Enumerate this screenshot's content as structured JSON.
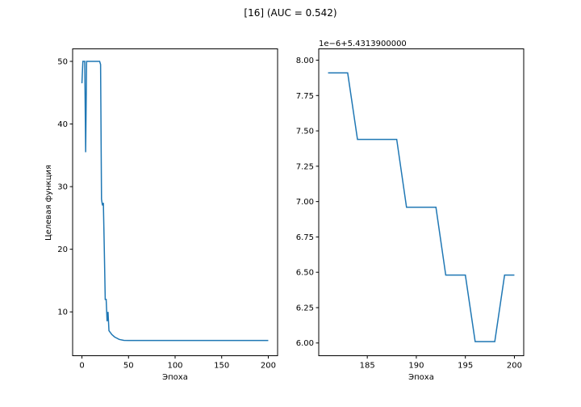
{
  "figure": {
    "suptitle": "[16] (AUC = 0.542)"
  },
  "chart_data": [
    {
      "type": "line",
      "title": "",
      "xlabel": "Эпоха",
      "ylabel": "Целевая функция",
      "xlim": [
        -10,
        210
      ],
      "ylim": [
        3.0,
        52.0
      ],
      "xticks": [
        0,
        50,
        100,
        150,
        200
      ],
      "yticks": [
        10,
        20,
        30,
        40,
        50
      ],
      "xtick_labels": [
        "0",
        "50",
        "100",
        "150",
        "200"
      ],
      "ytick_labels": [
        "10",
        "20",
        "30",
        "40",
        "50"
      ],
      "grid": false,
      "color": "#1f77b4",
      "x": [
        0,
        1,
        2,
        3,
        4,
        5,
        6,
        7,
        8,
        10,
        15,
        19,
        20,
        21,
        22,
        23,
        24,
        25,
        26,
        27,
        28,
        29,
        30,
        31,
        32,
        35,
        40,
        45,
        50,
        60,
        80,
        100,
        150,
        200
      ],
      "y": [
        46.5,
        50.0,
        50.0,
        50.0,
        35.5,
        50.0,
        50.0,
        50.0,
        50.0,
        50.0,
        50.0,
        50.0,
        49.5,
        28.0,
        27.0,
        27.4,
        20.0,
        12.0,
        12.0,
        8.5,
        10.0,
        7.0,
        6.8,
        6.6,
        6.4,
        6.0,
        5.6,
        5.45,
        5.43,
        5.432,
        5.4314,
        5.4314,
        5.4314,
        5.4314
      ]
    },
    {
      "type": "line",
      "title": "",
      "xlabel": "Эпоха",
      "ylabel": "",
      "offset_text": "1e−6+5.4313900000",
      "xlim": [
        180.05,
        200.95
      ],
      "ylim": [
        5.91,
        8.08
      ],
      "xticks": [
        185,
        190,
        195,
        200
      ],
      "yticks": [
        6.0,
        6.25,
        6.5,
        6.75,
        7.0,
        7.25,
        7.5,
        7.75,
        8.0
      ],
      "xtick_labels": [
        "185",
        "190",
        "195",
        "200"
      ],
      "ytick_labels": [
        "6.00",
        "6.25",
        "6.50",
        "6.75",
        "7.00",
        "7.25",
        "7.50",
        "7.75",
        "8.00"
      ],
      "grid": false,
      "color": "#1f77b4",
      "x": [
        181,
        182,
        183,
        184,
        185,
        186,
        187,
        188,
        189,
        190,
        191,
        192,
        193,
        194,
        195,
        196,
        197,
        198,
        199,
        200
      ],
      "y": [
        7.91,
        7.91,
        7.91,
        7.44,
        7.44,
        7.44,
        7.44,
        7.44,
        6.96,
        6.96,
        6.96,
        6.96,
        6.48,
        6.48,
        6.48,
        6.01,
        6.01,
        6.01,
        6.48,
        6.48
      ]
    }
  ]
}
